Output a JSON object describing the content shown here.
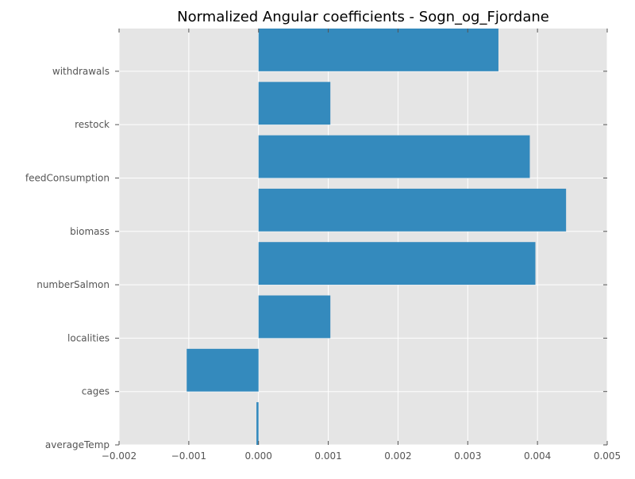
{
  "chart_data": {
    "type": "bar",
    "orientation": "horizontal",
    "title": "Normalized Angular coefficients - Sogn_og_Fjordane",
    "xlabel": "",
    "ylabel": "",
    "categories": [
      "averageTemp",
      "cages",
      "localities",
      "numberSalmon",
      "biomass",
      "feedConsumption",
      "restock",
      "withdrawals"
    ],
    "values": [
      -3e-05,
      -0.00103,
      0.00103,
      0.00397,
      0.00441,
      0.00389,
      0.00103,
      0.00344
    ],
    "xlim": [
      -0.002,
      0.005
    ],
    "x_ticks": [
      "−0.002",
      "−0.001",
      "0.000",
      "0.001",
      "0.002",
      "0.003",
      "0.004",
      "0.005"
    ],
    "x_tick_values": [
      -0.002,
      -0.001,
      0.0,
      0.001,
      0.002,
      0.003,
      0.004,
      0.005
    ],
    "grid": true,
    "legend": "none",
    "colors": {
      "bar": "#348abd",
      "plot_background": "#e5e5e5",
      "grid": "#ffffff",
      "tick_label": "#555555"
    }
  }
}
